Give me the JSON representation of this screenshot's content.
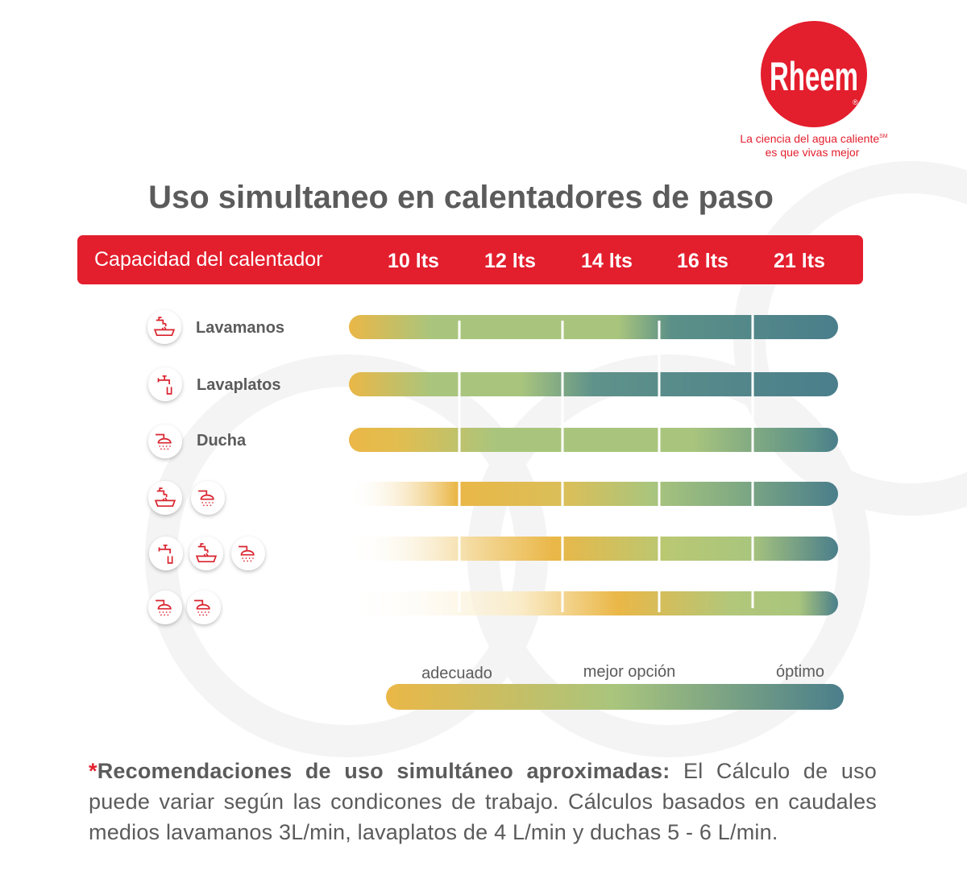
{
  "logo": {
    "brand": "Rheem",
    "registered": "®",
    "tagline_line1": "La ciencia del agua caliente",
    "service_mark": "SM",
    "tagline_line2": "es que vivas mejor"
  },
  "title": "Uso simultaneo en calentadores de paso",
  "header": {
    "label": "Capacidad del calentador",
    "capacities": [
      "10 lts",
      "12 lts",
      "14 lts",
      "16 lts",
      "21 lts"
    ]
  },
  "rows": [
    {
      "label": "Lavamanos"
    },
    {
      "label": "Lavaplatos"
    },
    {
      "label": "Ducha"
    }
  ],
  "legend": [
    "adecuado",
    "mejor opción",
    "óptimo"
  ],
  "note": {
    "asterisk": "*",
    "bold": "Recomendaciones de uso simultáneo aproximadas:",
    "text": "El Cálculo de uso puede variar según las condicones de trabajo. Cálculos basados en caudales medios lavamanos 3L/min, lavaplatos de 4 L/min y duchas 5 - 6 L/min."
  }
}
